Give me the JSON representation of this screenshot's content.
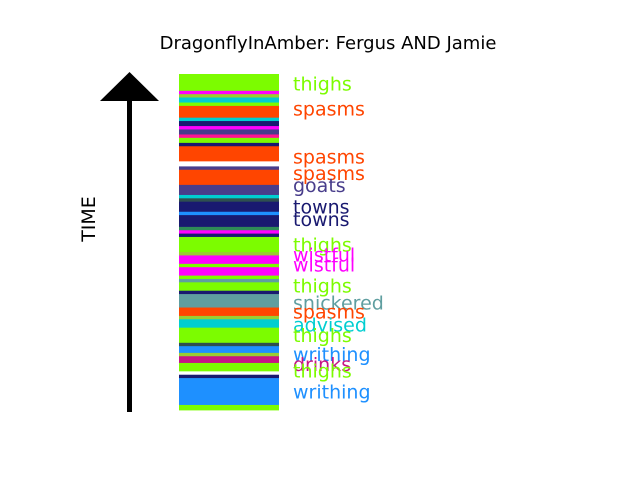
{
  "chart_data": {
    "type": "bar",
    "title": "DragonflyInAmber: Fergus AND Jamie",
    "ylabel": "TIME",
    "bands": [
      {
        "color": "#7cfc00",
        "y0": 0.0,
        "y1": 0.05
      },
      {
        "color": "#ff00ff",
        "y0": 0.05,
        "y1": 0.06
      },
      {
        "color": "#9acd32",
        "y0": 0.06,
        "y1": 0.07
      },
      {
        "color": "#00ced1",
        "y0": 0.07,
        "y1": 0.085
      },
      {
        "color": "#7cfc00",
        "y0": 0.085,
        "y1": 0.095
      },
      {
        "color": "#ff4500",
        "y0": 0.095,
        "y1": 0.13
      },
      {
        "color": "#00ced1",
        "y0": 0.13,
        "y1": 0.14
      },
      {
        "color": "#191970",
        "y0": 0.14,
        "y1": 0.155
      },
      {
        "color": "#ff00ff",
        "y0": 0.155,
        "y1": 0.165
      },
      {
        "color": "#483d8b",
        "y0": 0.165,
        "y1": 0.18
      },
      {
        "color": "#ff1493",
        "y0": 0.18,
        "y1": 0.19
      },
      {
        "color": "#7cfc00",
        "y0": 0.19,
        "y1": 0.205
      },
      {
        "color": "#191970",
        "y0": 0.205,
        "y1": 0.215
      },
      {
        "color": "#ff4500",
        "y0": 0.215,
        "y1": 0.26
      },
      {
        "color": "#ffffff",
        "y0": 0.26,
        "y1": 0.275
      },
      {
        "color": "#483d8b",
        "y0": 0.275,
        "y1": 0.285
      },
      {
        "color": "#ff4500",
        "y0": 0.285,
        "y1": 0.33
      },
      {
        "color": "#483d8b",
        "y0": 0.33,
        "y1": 0.36
      },
      {
        "color": "#00ced1",
        "y0": 0.36,
        "y1": 0.37
      },
      {
        "color": "#2f4f4f",
        "y0": 0.37,
        "y1": 0.38
      },
      {
        "color": "#191970",
        "y0": 0.38,
        "y1": 0.41
      },
      {
        "color": "#1e90ff",
        "y0": 0.41,
        "y1": 0.42
      },
      {
        "color": "#191970",
        "y0": 0.42,
        "y1": 0.455
      },
      {
        "color": "#2e8b57",
        "y0": 0.455,
        "y1": 0.465
      },
      {
        "color": "#ff00ff",
        "y0": 0.465,
        "y1": 0.475
      },
      {
        "color": "#191970",
        "y0": 0.475,
        "y1": 0.485
      },
      {
        "color": "#7cfc00",
        "y0": 0.485,
        "y1": 0.53
      },
      {
        "color": "#9acd32",
        "y0": 0.53,
        "y1": 0.54
      },
      {
        "color": "#ff00ff",
        "y0": 0.54,
        "y1": 0.565
      },
      {
        "color": "#7cfc00",
        "y0": 0.565,
        "y1": 0.575
      },
      {
        "color": "#ff00ff",
        "y0": 0.575,
        "y1": 0.6
      },
      {
        "color": "#7cfc00",
        "y0": 0.6,
        "y1": 0.61
      },
      {
        "color": "#5f9ea0",
        "y0": 0.61,
        "y1": 0.62
      },
      {
        "color": "#7cfc00",
        "y0": 0.62,
        "y1": 0.645
      },
      {
        "color": "#191970",
        "y0": 0.645,
        "y1": 0.655
      },
      {
        "color": "#5f9ea0",
        "y0": 0.655,
        "y1": 0.695
      },
      {
        "color": "#ff4500",
        "y0": 0.695,
        "y1": 0.72
      },
      {
        "color": "#9acd32",
        "y0": 0.72,
        "y1": 0.73
      },
      {
        "color": "#00ced1",
        "y0": 0.73,
        "y1": 0.755
      },
      {
        "color": "#7cfc00",
        "y0": 0.755,
        "y1": 0.8
      },
      {
        "color": "#2f4f4f",
        "y0": 0.8,
        "y1": 0.81
      },
      {
        "color": "#1e90ff",
        "y0": 0.81,
        "y1": 0.83
      },
      {
        "color": "#9acd32",
        "y0": 0.83,
        "y1": 0.84
      },
      {
        "color": "#c71585",
        "y0": 0.84,
        "y1": 0.86
      },
      {
        "color": "#7cfc00",
        "y0": 0.86,
        "y1": 0.885
      },
      {
        "color": "#ffffff",
        "y0": 0.885,
        "y1": 0.895
      },
      {
        "color": "#191970",
        "y0": 0.895,
        "y1": 0.905
      },
      {
        "color": "#1e90ff",
        "y0": 0.905,
        "y1": 0.985
      },
      {
        "color": "#7cfc00",
        "y0": 0.985,
        "y1": 1.0
      }
    ],
    "labels": [
      {
        "text": "thighs",
        "color": "#7cfc00",
        "pos": 0.028
      },
      {
        "text": "spasms",
        "color": "#ff4500",
        "pos": 0.103
      },
      {
        "text": "spasms",
        "color": "#ff4500",
        "pos": 0.245
      },
      {
        "text": "spasms",
        "color": "#ff4500",
        "pos": 0.295
      },
      {
        "text": "goats",
        "color": "#483d8b",
        "pos": 0.33
      },
      {
        "text": "towns",
        "color": "#191970",
        "pos": 0.395
      },
      {
        "text": "towns",
        "color": "#191970",
        "pos": 0.432
      },
      {
        "text": "thighs",
        "color": "#7cfc00",
        "pos": 0.507
      },
      {
        "text": "wistful",
        "color": "#ff00ff",
        "pos": 0.537
      },
      {
        "text": "wistful",
        "color": "#ff00ff",
        "pos": 0.567
      },
      {
        "text": "thighs",
        "color": "#7cfc00",
        "pos": 0.63
      },
      {
        "text": "snickered",
        "color": "#5f9ea0",
        "pos": 0.68
      },
      {
        "text": "spasms",
        "color": "#ff4500",
        "pos": 0.707
      },
      {
        "text": "advised",
        "color": "#00ced1",
        "pos": 0.745
      },
      {
        "text": "thighs",
        "color": "#7cfc00",
        "pos": 0.777
      },
      {
        "text": "writhing",
        "color": "#1e90ff",
        "pos": 0.833
      },
      {
        "text": "drinks",
        "color": "#c71585",
        "pos": 0.863
      },
      {
        "text": "thighs",
        "color": "#7cfc00",
        "pos": 0.883
      },
      {
        "text": "writhing",
        "color": "#1e90ff",
        "pos": 0.945
      }
    ]
  }
}
